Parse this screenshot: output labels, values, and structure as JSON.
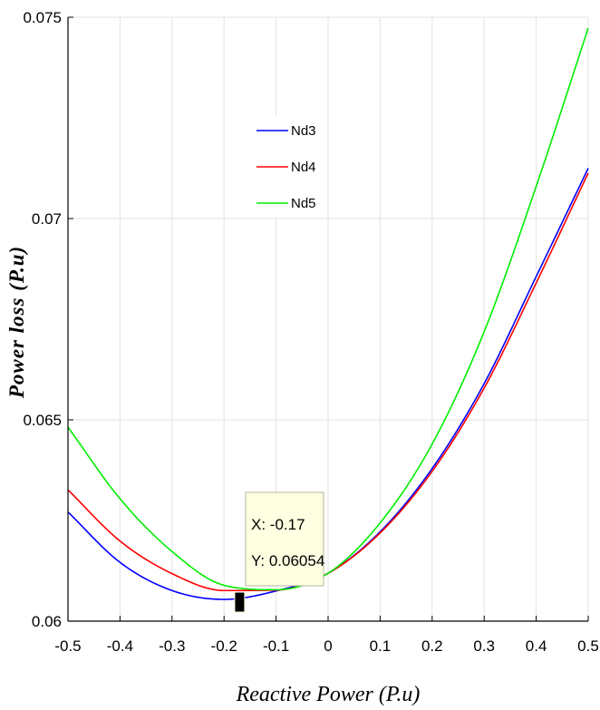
{
  "chart_data": {
    "type": "line",
    "xlabel": "Reactive Power (P.u)",
    "ylabel": "Power loss (P.u)",
    "xlim": [
      -0.5,
      0.5
    ],
    "ylim": [
      0.06,
      0.075
    ],
    "xticks": [
      -0.5,
      -0.4,
      -0.3,
      -0.2,
      -0.1,
      0,
      0.1,
      0.2,
      0.3,
      0.4,
      0.5
    ],
    "xtick_labels": [
      "-0.5",
      "-0.4",
      "-0.3",
      "-0.2",
      "-0.1",
      "0",
      "0.1",
      "0.2",
      "0.3",
      "0.4",
      "0.5"
    ],
    "yticks": [
      0.06,
      0.065,
      0.07,
      0.075
    ],
    "ytick_labels": [
      "0.06",
      "0.065",
      "0.07",
      "0.075"
    ],
    "grid": true,
    "legend_position": "upper-center",
    "x": [
      -0.5,
      -0.4,
      -0.3,
      -0.2,
      -0.1,
      0,
      0.1,
      0.2,
      0.3,
      0.4,
      0.5
    ],
    "series": [
      {
        "name": "Nd3",
        "color": "#0000ff",
        "values": [
          0.06271,
          0.06146,
          0.06076,
          0.06054,
          0.06075,
          0.06119,
          0.06222,
          0.06379,
          0.0659,
          0.06856,
          0.07125
        ]
      },
      {
        "name": "Nd4",
        "color": "#ff0000",
        "values": [
          0.06326,
          0.06199,
          0.06118,
          0.06076,
          0.06077,
          0.06119,
          0.06219,
          0.06372,
          0.06579,
          0.0684,
          0.07113
        ]
      },
      {
        "name": "Nd5",
        "color": "#00ee00",
        "values": [
          0.06482,
          0.06304,
          0.06173,
          0.06089,
          0.06078,
          0.06119,
          0.06244,
          0.0644,
          0.06719,
          0.0708,
          0.07473
        ]
      }
    ],
    "datatip": {
      "x_text": "X: -0.17",
      "y_text": "Y: 0.06054",
      "x": -0.17,
      "y": 0.06054
    }
  }
}
